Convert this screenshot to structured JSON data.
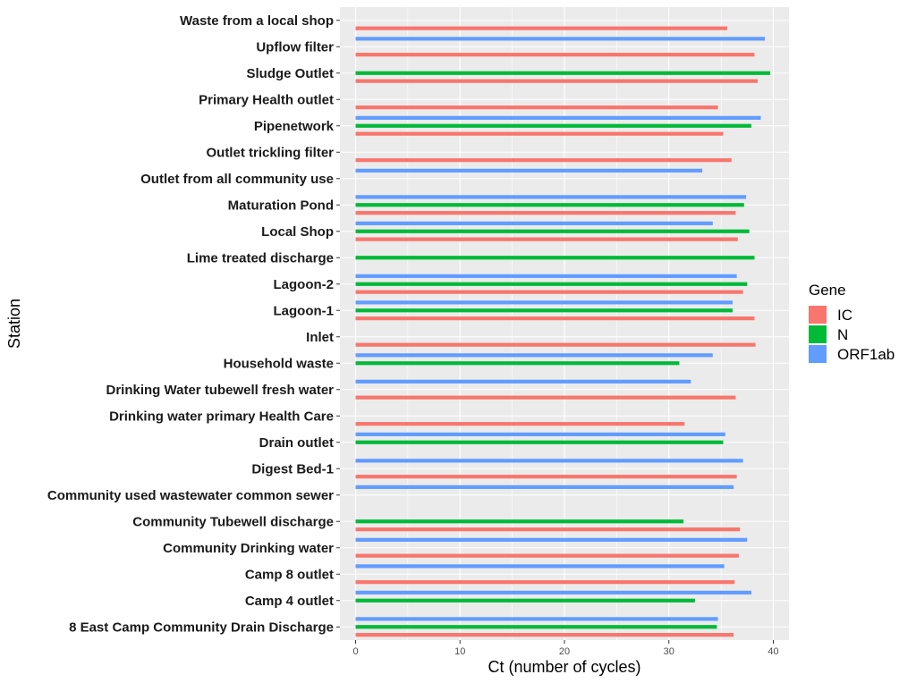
{
  "chart_data": {
    "type": "bar",
    "orientation": "horizontal",
    "categories": [
      "8 East Camp Community Drain Discharge",
      "Camp 4 outlet",
      "Camp 8 outlet",
      "Community Drinking water ",
      "Community Tubewell discharge",
      "Community used wastewater common sewer",
      "Digest Bed-1",
      "Drain outlet",
      "Drinking water primary Health Care",
      "Drinking Water tubewell fresh water",
      "Household waste",
      "Inlet",
      "Lagoon-1",
      "Lagoon-2",
      "Lime treated discharge",
      "Local Shop",
      "Maturation Pond",
      "Outlet from all community use",
      "Outlet trickling filter",
      "Pipenetwork",
      "Primary Health outlet",
      "Sludge Outlet",
      "Upflow filter",
      "Waste from a local shop"
    ],
    "series": [
      {
        "name": "IC",
        "color": "#F8766D",
        "values": [
          36.2,
          null,
          36.3,
          36.7,
          36.8,
          null,
          36.5,
          null,
          31.5,
          36.4,
          null,
          38.3,
          38.2,
          37.1,
          null,
          36.6,
          36.4,
          null,
          36.0,
          35.2,
          34.7,
          38.5,
          38.2,
          35.6
        ]
      },
      {
        "name": "N",
        "color": "#00BA38",
        "values": [
          34.6,
          32.5,
          null,
          null,
          31.4,
          null,
          null,
          35.2,
          null,
          null,
          31.0,
          null,
          36.1,
          37.5,
          38.2,
          37.7,
          37.2,
          null,
          null,
          37.9,
          null,
          39.7,
          null,
          null
        ]
      },
      {
        "name": "ORF1ab",
        "color": "#619CFF",
        "values": [
          34.7,
          37.9,
          35.3,
          37.5,
          null,
          36.2,
          37.1,
          35.4,
          null,
          32.1,
          34.2,
          null,
          36.1,
          36.5,
          null,
          34.2,
          37.4,
          33.2,
          null,
          38.8,
          null,
          null,
          39.2,
          null
        ]
      }
    ],
    "xlabel": "Ct (number of cycles)",
    "ylabel": "Station",
    "xlim": [
      -1.5,
      41.5
    ],
    "xticks": [
      "0",
      "10",
      "20",
      "30",
      "40"
    ],
    "grid": true,
    "legend": {
      "title": "Gene",
      "position": "right"
    },
    "panel_background": "#EBEBEB",
    "grid_color": "#FFFFFF"
  }
}
